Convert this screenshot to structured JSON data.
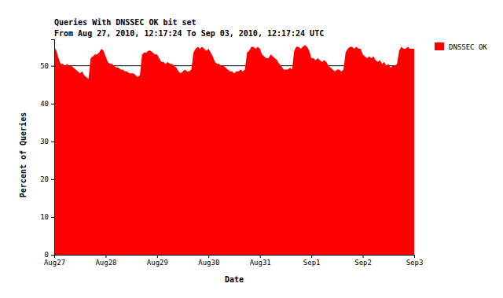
{
  "chart_data": {
    "type": "area",
    "title": "Queries With DNSSEC OK bit set",
    "subtitle": "From Aug 27, 2010, 12:17:24 To Sep 03, 2010, 12:17:24 UTC",
    "x_label": "Date",
    "y_label": "Percent of Queries",
    "categories": [
      "Aug27",
      null,
      null,
      null,
      null,
      null,
      null,
      null,
      null,
      null,
      null,
      null,
      null,
      null,
      null,
      null,
      null,
      null,
      null,
      null,
      null,
      null,
      null,
      null,
      "Aug28",
      null,
      null,
      null,
      null,
      null,
      null,
      null,
      null,
      null,
      null,
      null,
      null,
      null,
      null,
      null,
      null,
      null,
      null,
      null,
      null,
      null,
      null,
      null,
      "Aug29",
      null,
      null,
      null,
      null,
      null,
      null,
      null,
      null,
      null,
      null,
      null,
      null,
      null,
      null,
      null,
      null,
      null,
      null,
      null,
      null,
      null,
      null,
      null,
      "Aug30",
      null,
      null,
      null,
      null,
      null,
      null,
      null,
      null,
      null,
      null,
      null,
      null,
      null,
      null,
      null,
      null,
      null,
      null,
      null,
      null,
      null,
      null,
      null,
      "Aug31",
      null,
      null,
      null,
      null,
      null,
      null,
      null,
      null,
      null,
      null,
      null,
      null,
      null,
      null,
      null,
      null,
      null,
      null,
      null,
      null,
      null,
      null,
      null,
      "Sep1",
      null,
      null,
      null,
      null,
      null,
      null,
      null,
      null,
      null,
      null,
      null,
      null,
      null,
      null,
      null,
      null,
      null,
      null,
      null,
      null,
      null,
      null,
      null,
      "Sep2",
      null,
      null,
      null,
      null,
      null,
      null,
      null,
      null,
      null,
      null,
      null,
      null,
      null,
      null,
      null,
      null,
      null,
      null,
      null,
      null,
      null,
      null,
      null,
      "Sep3"
    ],
    "series": [
      {
        "name": "DNSSEC OK",
        "color": "#ff0000",
        "values": [
          55,
          54,
          52,
          50.5,
          50.5,
          50,
          50.5,
          50,
          50,
          49.5,
          49,
          48.5,
          48,
          48.5,
          47.5,
          47,
          46.5,
          52,
          52.5,
          53,
          53,
          53.5,
          54.5,
          54,
          52.5,
          51,
          50.5,
          50.5,
          50,
          49.5,
          49.5,
          49,
          49,
          48.5,
          48.5,
          48,
          48,
          48,
          47.5,
          47,
          47.5,
          53,
          53.5,
          53.5,
          54,
          54,
          53.5,
          53,
          53,
          52,
          51,
          51,
          50.5,
          51,
          50.5,
          50.5,
          50,
          49.5,
          48.5,
          48,
          48.5,
          49,
          48.5,
          48.5,
          49,
          53.5,
          54.5,
          55,
          54.5,
          55,
          54.5,
          54,
          54.5,
          53.5,
          52.5,
          51,
          50.5,
          50.5,
          50,
          50,
          49.5,
          49,
          48.5,
          48.5,
          48,
          48.5,
          48.5,
          49,
          48.5,
          49,
          53.5,
          54,
          55,
          55,
          54.5,
          55,
          54.5,
          53,
          52.5,
          52,
          52,
          53,
          52.5,
          52,
          51.5,
          50.5,
          50,
          49,
          49,
          49,
          49.5,
          49,
          54,
          55,
          55,
          54.5,
          55,
          55.5,
          55,
          54,
          52,
          52,
          51.5,
          52,
          51.5,
          51,
          51.5,
          51,
          50,
          49.5,
          49,
          48.5,
          49,
          49,
          48.5,
          49,
          53.5,
          54.5,
          55,
          55,
          54.5,
          55,
          54.5,
          54.5,
          53,
          52.5,
          52,
          52.5,
          52,
          52.5,
          51.5,
          51,
          51.5,
          50.5,
          51,
          50,
          50.5,
          49.5,
          50,
          50,
          50.5,
          54,
          55,
          54.5,
          54.5,
          55,
          54.5,
          54.5,
          54.5
        ]
      }
    ],
    "ylim": [
      0,
      57
    ],
    "yticks": [
      0,
      10,
      20,
      30,
      40,
      50
    ],
    "grid": true,
    "legend": "top-right"
  }
}
